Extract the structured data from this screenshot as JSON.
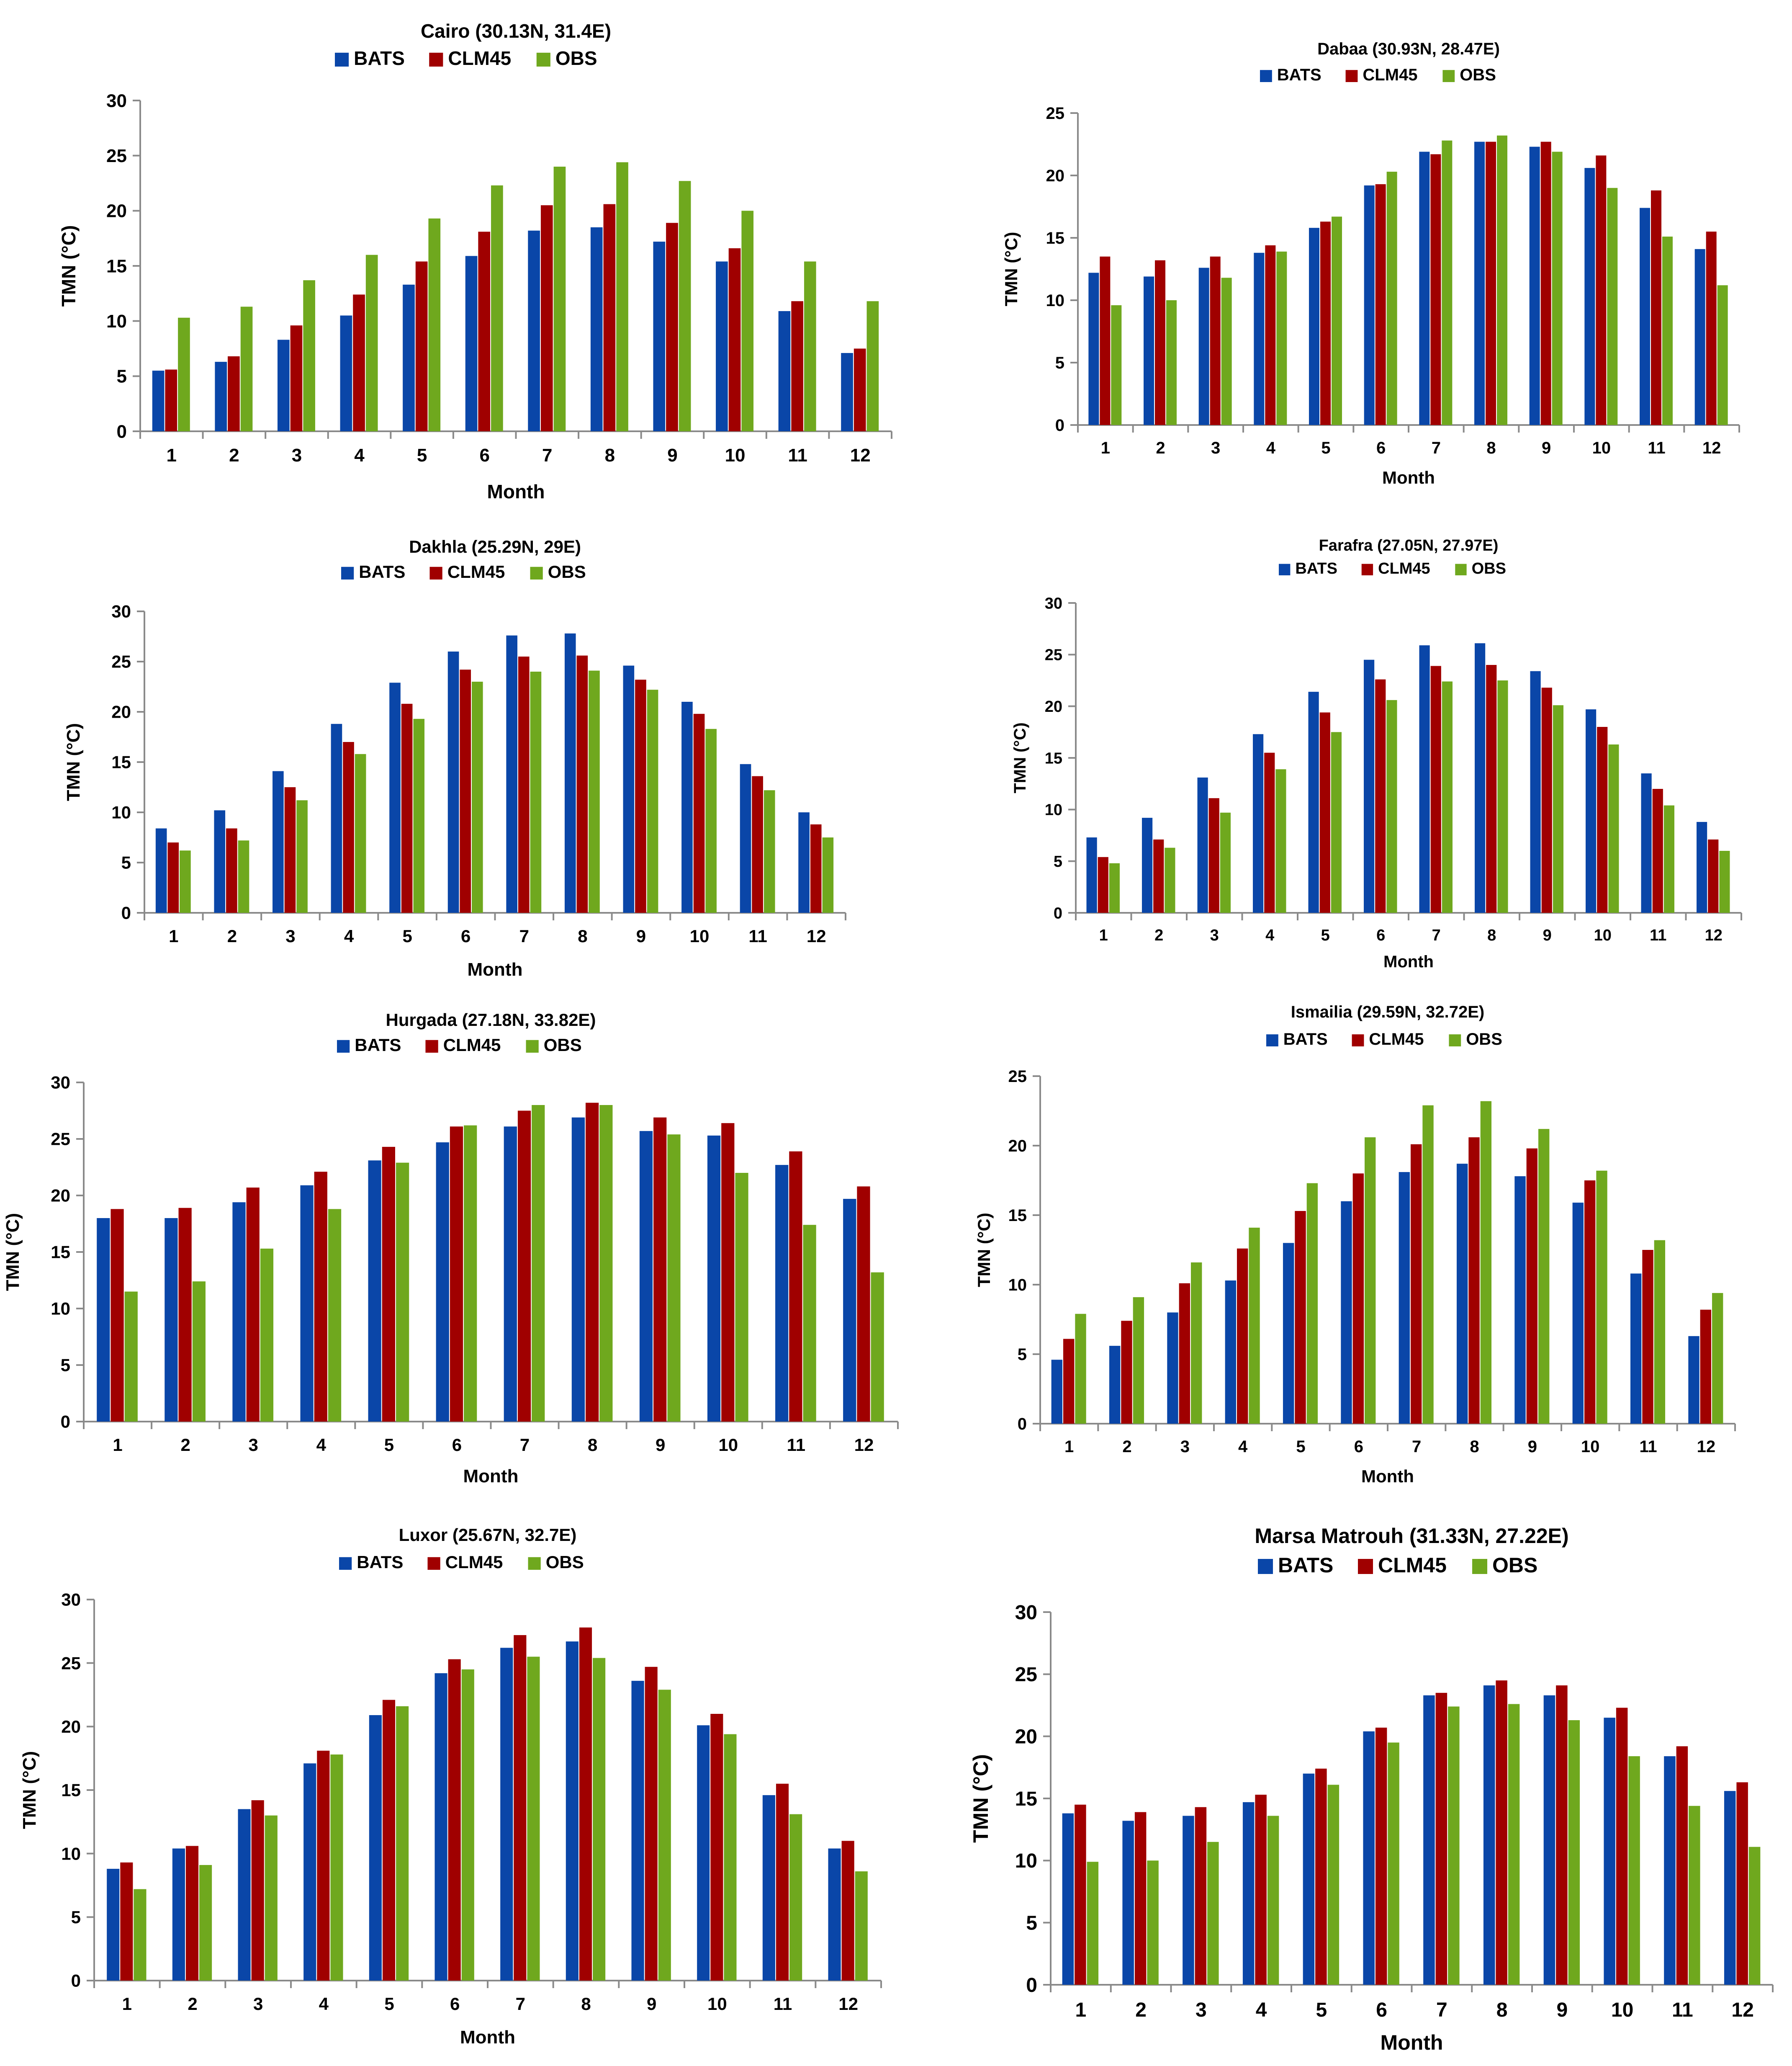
{
  "legend": [
    "BATS",
    "CLM45",
    "OBS"
  ],
  "colors": {
    "BATS": "#0a46a8",
    "CLM45": "#a00000",
    "OBS": "#6fa81e"
  },
  "chart_data": [
    {
      "type": "bar",
      "title": "Cairo (30.13N, 31.4E)",
      "xlabel": "Month",
      "ylabel": "TMN (°C)",
      "categories": [
        "1",
        "2",
        "3",
        "4",
        "5",
        "6",
        "7",
        "8",
        "9",
        "10",
        "11",
        "12"
      ],
      "ylim": [
        0,
        30
      ],
      "yticks": [
        0,
        5,
        10,
        15,
        20,
        25,
        30
      ],
      "series": [
        {
          "name": "BATS",
          "values": [
            5.5,
            6.3,
            8.3,
            10.5,
            13.3,
            15.9,
            18.2,
            18.5,
            17.2,
            15.4,
            10.9,
            7.1
          ]
        },
        {
          "name": "CLM45",
          "values": [
            5.6,
            6.8,
            9.6,
            12.4,
            15.4,
            18.1,
            20.5,
            20.6,
            18.9,
            16.6,
            11.8,
            7.5
          ]
        },
        {
          "name": "OBS",
          "values": [
            10.3,
            11.3,
            13.7,
            16.0,
            19.3,
            22.3,
            24.0,
            24.4,
            22.7,
            20.0,
            15.4,
            11.8
          ]
        }
      ]
    },
    {
      "type": "bar",
      "title": "Dabaa (30.93N, 28.47E)",
      "xlabel": "Month",
      "ylabel": "TMN (°C)",
      "categories": [
        "1",
        "2",
        "3",
        "4",
        "5",
        "6",
        "7",
        "8",
        "9",
        "10",
        "11",
        "12"
      ],
      "ylim": [
        0,
        25
      ],
      "yticks": [
        0,
        5,
        10,
        15,
        20,
        25
      ],
      "series": [
        {
          "name": "BATS",
          "values": [
            12.2,
            11.9,
            12.6,
            13.8,
            15.8,
            19.2,
            21.9,
            22.7,
            22.3,
            20.6,
            17.4,
            14.1
          ]
        },
        {
          "name": "CLM45",
          "values": [
            13.5,
            13.2,
            13.5,
            14.4,
            16.3,
            19.3,
            21.7,
            22.7,
            22.7,
            21.6,
            18.8,
            15.5
          ]
        },
        {
          "name": "OBS",
          "values": [
            9.6,
            10.0,
            11.8,
            13.9,
            16.7,
            20.3,
            22.8,
            23.2,
            21.9,
            19.0,
            15.1,
            11.2
          ]
        }
      ]
    },
    {
      "type": "bar",
      "title": "Dakhla (25.29N, 29E)",
      "xlabel": "Month",
      "ylabel": "TMN (°C)",
      "categories": [
        "1",
        "2",
        "3",
        "4",
        "5",
        "6",
        "7",
        "8",
        "9",
        "10",
        "11",
        "12"
      ],
      "ylim": [
        0,
        30
      ],
      "yticks": [
        0,
        5,
        10,
        15,
        20,
        25,
        30
      ],
      "series": [
        {
          "name": "BATS",
          "values": [
            8.4,
            10.2,
            14.1,
            18.8,
            22.9,
            26.0,
            27.6,
            27.8,
            24.6,
            21.0,
            14.8,
            10.0
          ]
        },
        {
          "name": "CLM45",
          "values": [
            7.0,
            8.4,
            12.5,
            17.0,
            20.8,
            24.2,
            25.5,
            25.6,
            23.2,
            19.8,
            13.6,
            8.8
          ]
        },
        {
          "name": "OBS",
          "values": [
            6.2,
            7.2,
            11.2,
            15.8,
            19.3,
            23.0,
            24.0,
            24.1,
            22.2,
            18.3,
            12.2,
            7.5
          ]
        }
      ]
    },
    {
      "type": "bar",
      "title": "Farafra (27.05N, 27.97E)",
      "xlabel": "Month",
      "ylabel": "TMN (°C)",
      "categories": [
        "1",
        "2",
        "3",
        "4",
        "5",
        "6",
        "7",
        "8",
        "9",
        "10",
        "11",
        "12"
      ],
      "ylim": [
        0,
        30
      ],
      "yticks": [
        0,
        5,
        10,
        15,
        20,
        25,
        30
      ],
      "series": [
        {
          "name": "BATS",
          "values": [
            7.3,
            9.2,
            13.1,
            17.3,
            21.4,
            24.5,
            25.9,
            26.1,
            23.4,
            19.7,
            13.5,
            8.8
          ]
        },
        {
          "name": "CLM45",
          "values": [
            5.4,
            7.1,
            11.1,
            15.5,
            19.4,
            22.6,
            23.9,
            24.0,
            21.8,
            18.0,
            12.0,
            7.1
          ]
        },
        {
          "name": "OBS",
          "values": [
            4.8,
            6.3,
            9.7,
            13.9,
            17.5,
            20.6,
            22.4,
            22.5,
            20.1,
            16.3,
            10.4,
            6.0
          ]
        }
      ]
    },
    {
      "type": "bar",
      "title": "Hurgada (27.18N, 33.82E)",
      "xlabel": "Month",
      "ylabel": "TMN (°C)",
      "categories": [
        "1",
        "2",
        "3",
        "4",
        "5",
        "6",
        "7",
        "8",
        "9",
        "10",
        "11",
        "12"
      ],
      "ylim": [
        0,
        30
      ],
      "yticks": [
        0,
        5,
        10,
        15,
        20,
        25,
        30
      ],
      "series": [
        {
          "name": "BATS",
          "values": [
            18.0,
            18.0,
            19.4,
            20.9,
            23.1,
            24.7,
            26.1,
            26.9,
            25.7,
            25.3,
            22.7,
            19.7
          ]
        },
        {
          "name": "CLM45",
          "values": [
            18.8,
            18.9,
            20.7,
            22.1,
            24.3,
            26.1,
            27.5,
            28.2,
            26.9,
            26.4,
            23.9,
            20.8
          ]
        },
        {
          "name": "OBS",
          "values": [
            11.5,
            12.4,
            15.3,
            18.8,
            22.9,
            26.2,
            28.0,
            28.0,
            25.4,
            22.0,
            17.4,
            13.2
          ]
        }
      ]
    },
    {
      "type": "bar",
      "title": "Ismailia (29.59N, 32.72E)",
      "xlabel": "Month",
      "ylabel": "TMN (°C)",
      "categories": [
        "1",
        "2",
        "3",
        "4",
        "5",
        "6",
        "7",
        "8",
        "9",
        "10",
        "11",
        "12"
      ],
      "ylim": [
        0,
        25
      ],
      "yticks": [
        0,
        5,
        10,
        15,
        20,
        25
      ],
      "series": [
        {
          "name": "BATS",
          "values": [
            4.6,
            5.6,
            8.0,
            10.3,
            13.0,
            16.0,
            18.1,
            18.7,
            17.8,
            15.9,
            10.8,
            6.3
          ]
        },
        {
          "name": "CLM45",
          "values": [
            6.1,
            7.4,
            10.1,
            12.6,
            15.3,
            18.0,
            20.1,
            20.6,
            19.8,
            17.5,
            12.5,
            8.2
          ]
        },
        {
          "name": "OBS",
          "values": [
            7.9,
            9.1,
            11.6,
            14.1,
            17.3,
            20.6,
            22.9,
            23.2,
            21.2,
            18.2,
            13.2,
            9.4
          ]
        }
      ]
    },
    {
      "type": "bar",
      "title": "Luxor (25.67N, 32.7E)",
      "xlabel": "Month",
      "ylabel": "TMN (°C)",
      "categories": [
        "1",
        "2",
        "3",
        "4",
        "5",
        "6",
        "7",
        "8",
        "9",
        "10",
        "11",
        "12"
      ],
      "ylim": [
        0,
        30
      ],
      "yticks": [
        0,
        5,
        10,
        15,
        20,
        25,
        30
      ],
      "series": [
        {
          "name": "BATS",
          "values": [
            8.8,
            10.4,
            13.5,
            17.1,
            20.9,
            24.2,
            26.2,
            26.7,
            23.6,
            20.1,
            14.6,
            10.4
          ]
        },
        {
          "name": "CLM45",
          "values": [
            9.3,
            10.6,
            14.2,
            18.1,
            22.1,
            25.3,
            27.2,
            27.8,
            24.7,
            21.0,
            15.5,
            11.0
          ]
        },
        {
          "name": "OBS",
          "values": [
            7.2,
            9.1,
            13.0,
            17.8,
            21.6,
            24.5,
            25.5,
            25.4,
            22.9,
            19.4,
            13.1,
            8.6
          ]
        }
      ]
    },
    {
      "type": "bar",
      "title": "Marsa Matrouh (31.33N, 27.22E)",
      "xlabel": "Month",
      "ylabel": "TMN (°C)",
      "categories": [
        "1",
        "2",
        "3",
        "4",
        "5",
        "6",
        "7",
        "8",
        "9",
        "10",
        "11",
        "12"
      ],
      "ylim": [
        0,
        30
      ],
      "yticks": [
        0,
        5,
        10,
        15,
        20,
        25,
        30
      ],
      "series": [
        {
          "name": "BATS",
          "values": [
            13.8,
            13.2,
            13.6,
            14.7,
            17.0,
            20.4,
            23.3,
            24.1,
            23.3,
            21.5,
            18.4,
            15.6
          ]
        },
        {
          "name": "CLM45",
          "values": [
            14.5,
            13.9,
            14.3,
            15.3,
            17.4,
            20.7,
            23.5,
            24.5,
            24.1,
            22.3,
            19.2,
            16.3
          ]
        },
        {
          "name": "OBS",
          "values": [
            9.9,
            10.0,
            11.5,
            13.6,
            16.1,
            19.5,
            22.4,
            22.6,
            21.3,
            18.4,
            14.4,
            11.1
          ]
        }
      ]
    }
  ]
}
